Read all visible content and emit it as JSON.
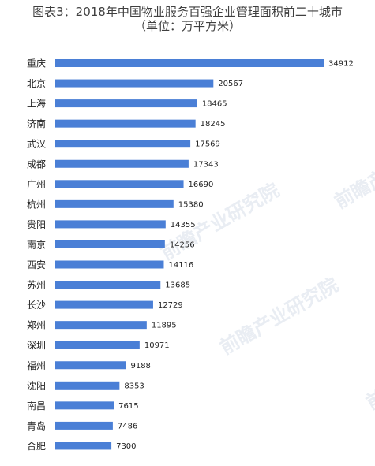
{
  "title_line1": "图表3：2018年中国物业服务百强企业管理面积前二十城市",
  "title_line2": "（单位：万平方米）",
  "watermark": "前瞻产业研究院",
  "chart_data": {
    "type": "bar",
    "orientation": "horizontal",
    "title": "图表3：2018年中国物业服务百强企业管理面积前二十城市（单位：万平方米）",
    "categories": [
      "重庆",
      "北京",
      "上海",
      "济南",
      "武汉",
      "成都",
      "广州",
      "杭州",
      "贵阳",
      "南京",
      "西安",
      "苏州",
      "长沙",
      "郑州",
      "深圳",
      "福州",
      "沈阳",
      "南昌",
      "青岛",
      "合肥"
    ],
    "values": [
      34912,
      20567,
      18465,
      18245,
      17569,
      17343,
      16690,
      15380,
      14355,
      14256,
      14116,
      13685,
      12729,
      11895,
      10971,
      9188,
      8353,
      7615,
      7486,
      7300
    ],
    "xlim": [
      0,
      34912
    ],
    "bar_color": "#4a7fd6",
    "grid": false,
    "legend": "none"
  }
}
